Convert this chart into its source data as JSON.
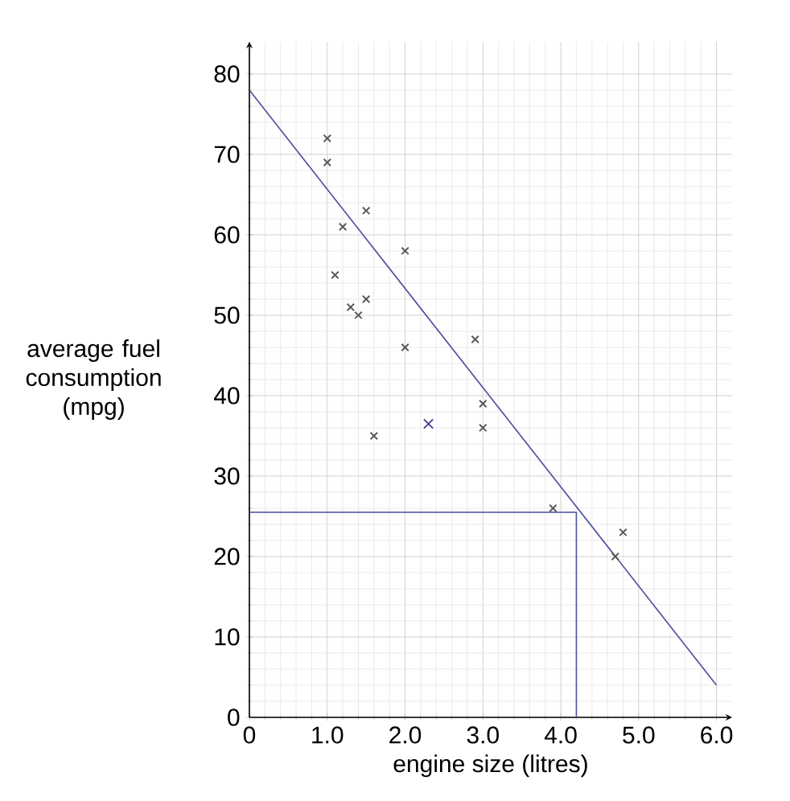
{
  "chart_data": {
    "type": "scatter",
    "xlabel": "engine size (litres)",
    "ylabel": "average fuel consumption (mpg)",
    "xlim": [
      0,
      6.2
    ],
    "ylim": [
      0,
      84
    ],
    "xticks": [
      0,
      {
        "value": 1,
        "label": "1.0"
      },
      {
        "value": 2,
        "label": "2.0"
      },
      {
        "value": 3,
        "label": "3.0"
      },
      {
        "value": 4,
        "label": "4.0"
      },
      {
        "value": 5,
        "label": "5.0"
      },
      {
        "value": 6,
        "label": "6.0"
      }
    ],
    "yticks": [
      0,
      10,
      20,
      30,
      40,
      50,
      60,
      70,
      80
    ],
    "grid": true,
    "marker": "cross",
    "series": [
      {
        "color": "#555555",
        "x": [
          1.0,
          1.0,
          1.2,
          1.5,
          1.1,
          1.3,
          1.4,
          1.5,
          2.0,
          2.0,
          2.9,
          1.6,
          3.0,
          3.0,
          3.9,
          4.7,
          4.8
        ],
        "values": [
          72,
          69,
          61,
          63,
          55,
          51,
          50,
          52,
          58,
          46,
          47,
          35,
          39,
          36,
          26,
          20,
          23
        ]
      },
      {
        "color": "#3a3f8f",
        "x": [
          2.3
        ],
        "values": [
          36.5
        ]
      },
      {
        "type": "line",
        "color": "#4a4f9a",
        "x": [
          0,
          6.0
        ],
        "values": [
          78,
          4
        ],
        "marker": "none"
      },
      {
        "type": "line",
        "color": "#4a4f9a",
        "x": [
          0,
          4.2,
          4.2
        ],
        "values": [
          25.5,
          25.5,
          0
        ],
        "marker": "none"
      }
    ]
  }
}
